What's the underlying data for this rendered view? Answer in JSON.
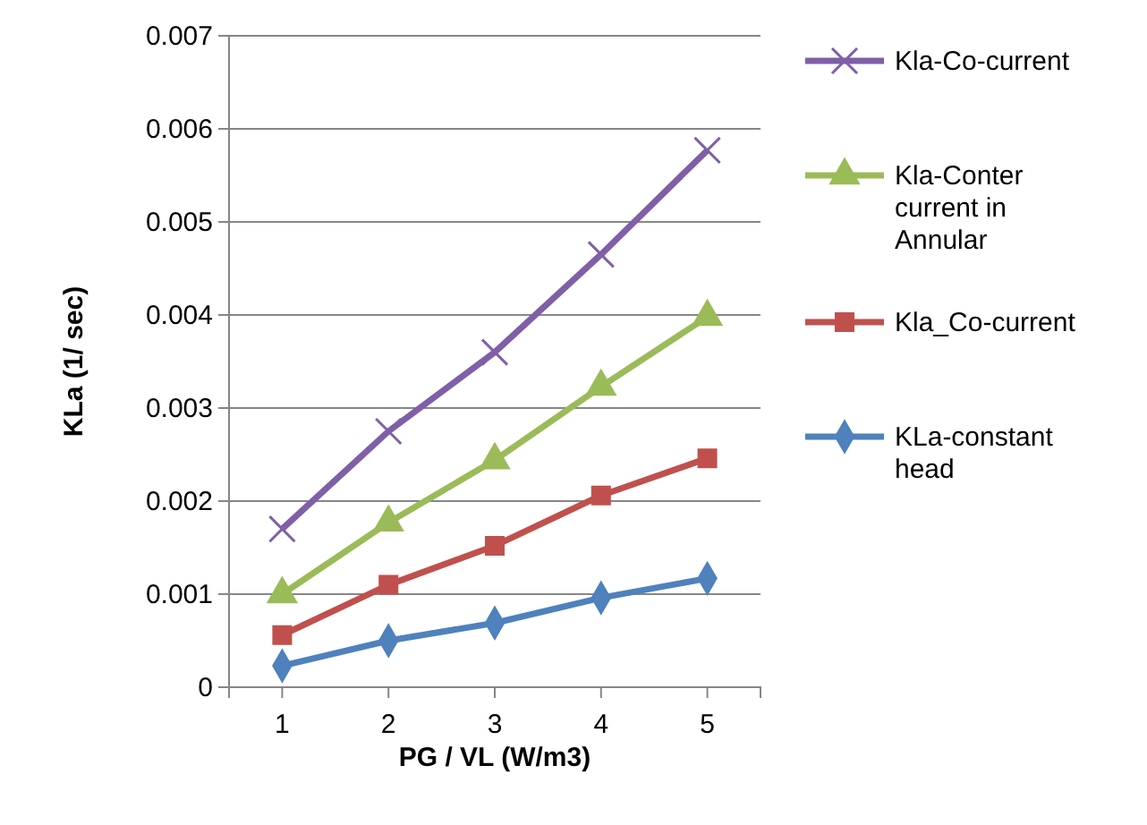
{
  "chart_data": {
    "type": "line",
    "xlabel": "PG / VL (W/m3)",
    "ylabel": "KLa (1/ sec)",
    "categories": [
      "1",
      "2",
      "3",
      "4",
      "5"
    ],
    "series": [
      {
        "name": "Kla-Co-current",
        "color": "#7f5fa8",
        "marker": "cross",
        "values": [
          0.0017,
          0.00275,
          0.0036,
          0.00465,
          0.00577
        ]
      },
      {
        "name": "Kla-Conter current in Annular",
        "color": "#9bbb59",
        "marker": "triangle",
        "values": [
          0.001,
          0.00177,
          0.00244,
          0.00323,
          0.00398
        ]
      },
      {
        "name": "Kla_Co-current",
        "color": "#c0504d",
        "marker": "square",
        "values": [
          0.00056,
          0.0011,
          0.00152,
          0.00206,
          0.00246
        ]
      },
      {
        "name": "KLa-constant head",
        "color": "#4f81bd",
        "marker": "diamond",
        "values": [
          0.00023,
          0.0005,
          0.00069,
          0.00096,
          0.00117
        ]
      }
    ],
    "ylim": [
      0,
      0.007
    ],
    "yticks": [
      0,
      0.001,
      0.002,
      0.003,
      0.004,
      0.005,
      0.006,
      0.007
    ],
    "grid": "y",
    "legend": "right"
  }
}
